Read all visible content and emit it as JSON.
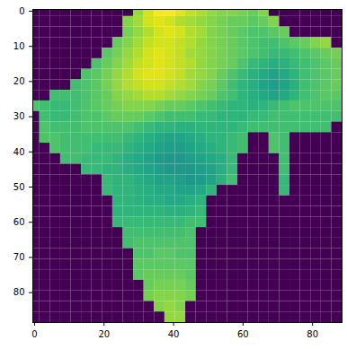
{
  "chart_data": {
    "type": "heatmap",
    "color": "viridis",
    "xlim": [
      -0.5,
      88.5
    ],
    "ylim": [
      88.5,
      -0.5
    ],
    "xticks": [
      0,
      20,
      40,
      60,
      80
    ],
    "yticks": [
      0,
      10,
      20,
      30,
      40,
      50,
      60,
      70,
      80
    ],
    "x": [
      0,
      3,
      6,
      9,
      12,
      15,
      18,
      21,
      24,
      27,
      30,
      33,
      36,
      39,
      42,
      45,
      48,
      51,
      54,
      57,
      60,
      63,
      66,
      69,
      72,
      75,
      78,
      81,
      84,
      87
    ],
    "y": [
      0,
      3,
      6,
      9,
      12,
      15,
      18,
      21,
      24,
      27,
      30,
      33,
      36,
      39,
      42,
      45,
      48,
      51,
      54,
      57,
      60,
      63,
      66,
      69,
      72,
      75,
      78,
      81,
      84,
      87
    ],
    "cells": [
      [
        0,
        0,
        0,
        0,
        0,
        0,
        0,
        0,
        0,
        0,
        0.72,
        0.8,
        0.85,
        0.86,
        0.82,
        0.78,
        0.75,
        0.72,
        0.7,
        0.7,
        0.68,
        0.66,
        0.7,
        0,
        0,
        0,
        0,
        0,
        0,
        0
      ],
      [
        0,
        0,
        0,
        0,
        0,
        0,
        0,
        0,
        0,
        0.7,
        0.74,
        0.8,
        0.82,
        0.8,
        0.76,
        0.74,
        0.72,
        0.7,
        0.68,
        0.66,
        0.66,
        0.64,
        0.66,
        0.7,
        0,
        0,
        0,
        0,
        0,
        0
      ],
      [
        0,
        0,
        0,
        0,
        0,
        0,
        0,
        0,
        0,
        0.68,
        0.72,
        0.76,
        0.8,
        0.82,
        0.8,
        0.76,
        0.74,
        0.7,
        0.68,
        0.66,
        0.64,
        0.62,
        0.62,
        0.64,
        0.66,
        0,
        0,
        0,
        0,
        0
      ],
      [
        0,
        0,
        0,
        0,
        0,
        0,
        0,
        0,
        0.66,
        0.7,
        0.74,
        0.78,
        0.8,
        0.8,
        0.78,
        0.76,
        0.72,
        0.7,
        0.68,
        0.66,
        0.64,
        0.62,
        0.6,
        0.6,
        0.62,
        0.64,
        0.66,
        0.7,
        0.72,
        0
      ],
      [
        0,
        0,
        0,
        0,
        0,
        0,
        0,
        0.64,
        0.68,
        0.72,
        0.76,
        0.8,
        0.82,
        0.8,
        0.78,
        0.74,
        0.72,
        0.7,
        0.68,
        0.66,
        0.64,
        0.62,
        0.6,
        0.58,
        0.58,
        0.6,
        0.62,
        0.64,
        0.66,
        0.68
      ],
      [
        0,
        0,
        0,
        0,
        0,
        0,
        0.62,
        0.66,
        0.7,
        0.74,
        0.78,
        0.8,
        0.82,
        0.8,
        0.78,
        0.76,
        0.72,
        0.7,
        0.68,
        0.66,
        0.62,
        0.58,
        0.56,
        0.54,
        0.55,
        0.58,
        0.6,
        0.62,
        0.64,
        0.66
      ],
      [
        0,
        0,
        0,
        0,
        0,
        0.62,
        0.64,
        0.68,
        0.72,
        0.76,
        0.8,
        0.82,
        0.82,
        0.8,
        0.78,
        0.74,
        0.72,
        0.7,
        0.66,
        0.62,
        0.58,
        0.55,
        0.52,
        0.5,
        0.52,
        0.56,
        0.6,
        0.62,
        0.64,
        0.66
      ],
      [
        0,
        0,
        0,
        0,
        0.6,
        0.62,
        0.64,
        0.68,
        0.72,
        0.76,
        0.78,
        0.8,
        0.8,
        0.78,
        0.76,
        0.74,
        0.7,
        0.68,
        0.64,
        0.6,
        0.56,
        0.54,
        0.5,
        0.48,
        0.5,
        0.55,
        0.6,
        0.62,
        0.64,
        0.66
      ],
      [
        0,
        0,
        0.6,
        0.6,
        0.6,
        0.62,
        0.64,
        0.66,
        0.7,
        0.72,
        0.74,
        0.76,
        0.76,
        0.74,
        0.72,
        0.7,
        0.68,
        0.66,
        0.62,
        0.6,
        0.56,
        0.54,
        0.52,
        0.5,
        0.52,
        0.56,
        0.6,
        0.62,
        0.64,
        0.64
      ],
      [
        0.62,
        0.6,
        0.58,
        0.58,
        0.6,
        0.62,
        0.64,
        0.66,
        0.68,
        0.7,
        0.7,
        0.7,
        0.68,
        0.66,
        0.66,
        0.64,
        0.62,
        0.6,
        0.58,
        0.56,
        0.56,
        0.55,
        0.56,
        0.58,
        0.6,
        0.62,
        0.62,
        0.62,
        0.62,
        0.62
      ],
      [
        0,
        0.6,
        0.58,
        0.58,
        0.6,
        0.62,
        0.62,
        0.64,
        0.66,
        0.66,
        0.66,
        0.64,
        0.62,
        0.6,
        0.6,
        0.6,
        0.58,
        0.58,
        0.56,
        0.56,
        0.56,
        0.58,
        0.58,
        0.6,
        0.6,
        0.6,
        0.6,
        0.6,
        0.6,
        0.6
      ],
      [
        0,
        0.62,
        0.6,
        0.6,
        0.6,
        0.62,
        0.62,
        0.62,
        0.62,
        0.62,
        0.6,
        0.58,
        0.56,
        0.56,
        0.55,
        0.55,
        0.56,
        0.56,
        0.56,
        0.56,
        0.58,
        0.6,
        0.6,
        0.6,
        0.6,
        0.6,
        0.6,
        0.6,
        0.6,
        0
      ],
      [
        0,
        0.62,
        0.62,
        0.6,
        0.6,
        0.6,
        0.6,
        0.6,
        0.6,
        0.58,
        0.56,
        0.54,
        0.52,
        0.5,
        0.5,
        0.52,
        0.54,
        0.56,
        0.56,
        0.58,
        0.6,
        0,
        0,
        0.62,
        0.6,
        0,
        0,
        0,
        0,
        0
      ],
      [
        0,
        0,
        0.62,
        0.6,
        0.6,
        0.6,
        0.58,
        0.58,
        0.58,
        0.56,
        0.54,
        0.52,
        0.5,
        0.48,
        0.48,
        0.5,
        0.52,
        0.54,
        0.56,
        0.58,
        0.6,
        0,
        0,
        0.62,
        0.6,
        0,
        0,
        0,
        0,
        0
      ],
      [
        0,
        0,
        0,
        0.6,
        0.6,
        0.58,
        0.58,
        0.58,
        0.56,
        0.54,
        0.52,
        0.5,
        0.47,
        0.46,
        0.46,
        0.48,
        0.5,
        0.52,
        0.54,
        0.58,
        0,
        0,
        0,
        0,
        0.6,
        0,
        0,
        0,
        0,
        0
      ],
      [
        0,
        0,
        0,
        0,
        0,
        0.58,
        0.58,
        0.56,
        0.56,
        0.54,
        0.52,
        0.5,
        0.48,
        0.46,
        0.46,
        0.46,
        0.48,
        0.5,
        0.54,
        0.58,
        0,
        0,
        0,
        0,
        0.6,
        0,
        0,
        0,
        0,
        0
      ],
      [
        0,
        0,
        0,
        0,
        0,
        0,
        0,
        0.58,
        0.56,
        0.56,
        0.54,
        0.52,
        0.5,
        0.5,
        0.48,
        0.46,
        0.47,
        0.5,
        0.55,
        0.6,
        0,
        0,
        0,
        0,
        0.58,
        0,
        0,
        0,
        0,
        0
      ],
      [
        0,
        0,
        0,
        0,
        0,
        0,
        0,
        0.58,
        0.56,
        0.56,
        0.55,
        0.54,
        0.52,
        0.52,
        0.5,
        0.5,
        0.52,
        0.56,
        0,
        0,
        0,
        0,
        0,
        0,
        0.58,
        0,
        0,
        0,
        0,
        0
      ],
      [
        0,
        0,
        0,
        0,
        0,
        0,
        0,
        0,
        0.56,
        0.56,
        0.55,
        0.54,
        0.54,
        0.52,
        0.52,
        0.54,
        0.56,
        0,
        0,
        0,
        0,
        0,
        0,
        0,
        0,
        0,
        0,
        0,
        0,
        0
      ],
      [
        0,
        0,
        0,
        0,
        0,
        0,
        0,
        0,
        0.56,
        0.56,
        0.56,
        0.56,
        0.56,
        0.55,
        0.55,
        0.56,
        0.58,
        0,
        0,
        0,
        0,
        0,
        0,
        0,
        0,
        0,
        0,
        0,
        0,
        0
      ],
      [
        0,
        0,
        0,
        0,
        0,
        0,
        0,
        0,
        0.58,
        0.58,
        0.58,
        0.58,
        0.58,
        0.58,
        0.58,
        0.6,
        0.6,
        0,
        0,
        0,
        0,
        0,
        0,
        0,
        0,
        0,
        0,
        0,
        0,
        0
      ],
      [
        0,
        0,
        0,
        0,
        0,
        0,
        0,
        0,
        0,
        0.6,
        0.6,
        0.6,
        0.6,
        0.6,
        0.6,
        0.62,
        0,
        0,
        0,
        0,
        0,
        0,
        0,
        0,
        0,
        0,
        0,
        0,
        0,
        0
      ],
      [
        0,
        0,
        0,
        0,
        0,
        0,
        0,
        0,
        0,
        0.6,
        0.62,
        0.62,
        0.62,
        0.62,
        0.62,
        0.62,
        0,
        0,
        0,
        0,
        0,
        0,
        0,
        0,
        0,
        0,
        0,
        0,
        0,
        0
      ],
      [
        0,
        0,
        0,
        0,
        0,
        0,
        0,
        0,
        0,
        0,
        0.62,
        0.62,
        0.64,
        0.64,
        0.62,
        0.62,
        0,
        0,
        0,
        0,
        0,
        0,
        0,
        0,
        0,
        0,
        0,
        0,
        0,
        0
      ],
      [
        0,
        0,
        0,
        0,
        0,
        0,
        0,
        0,
        0,
        0,
        0.64,
        0.64,
        0.64,
        0.64,
        0.64,
        0.64,
        0,
        0,
        0,
        0,
        0,
        0,
        0,
        0,
        0,
        0,
        0,
        0,
        0,
        0
      ],
      [
        0,
        0,
        0,
        0,
        0,
        0,
        0,
        0,
        0,
        0,
        0.64,
        0.66,
        0.66,
        0.66,
        0.66,
        0.64,
        0,
        0,
        0,
        0,
        0,
        0,
        0,
        0,
        0,
        0,
        0,
        0,
        0,
        0
      ],
      [
        0,
        0,
        0,
        0,
        0,
        0,
        0,
        0,
        0,
        0,
        0,
        0.66,
        0.68,
        0.68,
        0.68,
        0.66,
        0,
        0,
        0,
        0,
        0,
        0,
        0,
        0,
        0,
        0,
        0,
        0,
        0,
        0
      ],
      [
        0,
        0,
        0,
        0,
        0,
        0,
        0,
        0,
        0,
        0,
        0,
        0.68,
        0.7,
        0.7,
        0.7,
        0.68,
        0,
        0,
        0,
        0,
        0,
        0,
        0,
        0,
        0,
        0,
        0,
        0,
        0,
        0
      ],
      [
        0,
        0,
        0,
        0,
        0,
        0,
        0,
        0,
        0,
        0,
        0,
        0,
        0.7,
        0.72,
        0.7,
        0,
        0,
        0,
        0,
        0,
        0,
        0,
        0,
        0,
        0,
        0,
        0,
        0,
        0,
        0
      ],
      [
        0,
        0,
        0,
        0,
        0,
        0,
        0,
        0,
        0,
        0,
        0,
        0,
        0,
        0.72,
        0.72,
        0,
        0,
        0,
        0,
        0,
        0,
        0,
        0,
        0,
        0,
        0,
        0,
        0,
        0,
        0
      ]
    ]
  }
}
